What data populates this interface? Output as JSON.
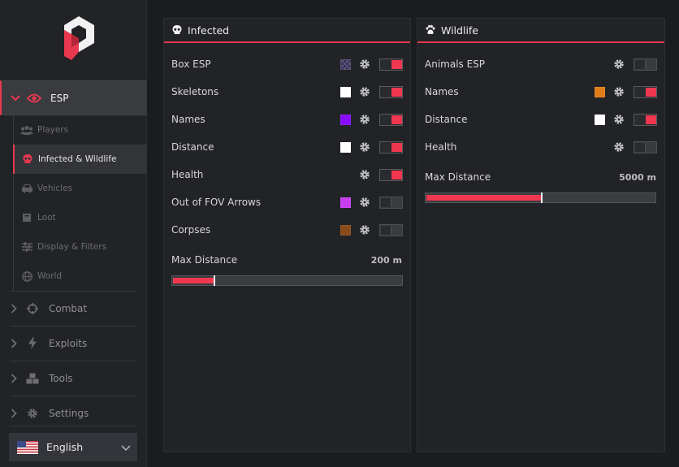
{
  "sidebar": {
    "esp_label": "ESP",
    "sub_items": [
      {
        "label": "Players",
        "icon": "users-icon"
      },
      {
        "label": "Infected & Wildlife",
        "icon": "skull-icon"
      },
      {
        "label": "Vehicles",
        "icon": "car-icon"
      },
      {
        "label": "Loot",
        "icon": "box-icon"
      },
      {
        "label": "Display & Filters",
        "icon": "sliders-icon"
      },
      {
        "label": "World",
        "icon": "globe-icon"
      }
    ],
    "sections": [
      {
        "label": "Combat",
        "icon": "crosshair-icon"
      },
      {
        "label": "Exploits",
        "icon": "bolt-icon"
      },
      {
        "label": "Tools",
        "icon": "cubes-icon"
      },
      {
        "label": "Settings",
        "icon": "gear-icon"
      }
    ],
    "language": "English"
  },
  "infected": {
    "title": "Infected",
    "rows": [
      {
        "label": "Box ESP",
        "color": "checker",
        "enabled": true
      },
      {
        "label": "Skeletons",
        "color": "#ffffff",
        "enabled": true
      },
      {
        "label": "Names",
        "color": "#8a0cff",
        "enabled": true
      },
      {
        "label": "Distance",
        "color": "#ffffff",
        "enabled": true
      },
      {
        "label": "Health",
        "color": null,
        "enabled": true
      },
      {
        "label": "Out of FOV Arrows",
        "color": "#c93cf0",
        "enabled": false
      },
      {
        "label": "Corpses",
        "color": "#8b4a1a",
        "enabled": false
      }
    ],
    "max_distance_label": "Max Distance",
    "max_distance_value": "200 m",
    "max_distance_fraction": 0.18
  },
  "wildlife": {
    "title": "Wildlife",
    "rows": [
      {
        "label": "Animals ESP",
        "color": null,
        "enabled": false
      },
      {
        "label": "Names",
        "color": "#e07d1a",
        "enabled": true
      },
      {
        "label": "Distance",
        "color": "#ffffff",
        "enabled": true
      },
      {
        "label": "Health",
        "color": null,
        "enabled": false
      }
    ],
    "max_distance_label": "Max Distance",
    "max_distance_value": "5000 m",
    "max_distance_fraction": 0.5
  },
  "colors": {
    "accent": "#e8384f",
    "panel_bg": "#222326",
    "app_bg": "#1b1c1f"
  }
}
